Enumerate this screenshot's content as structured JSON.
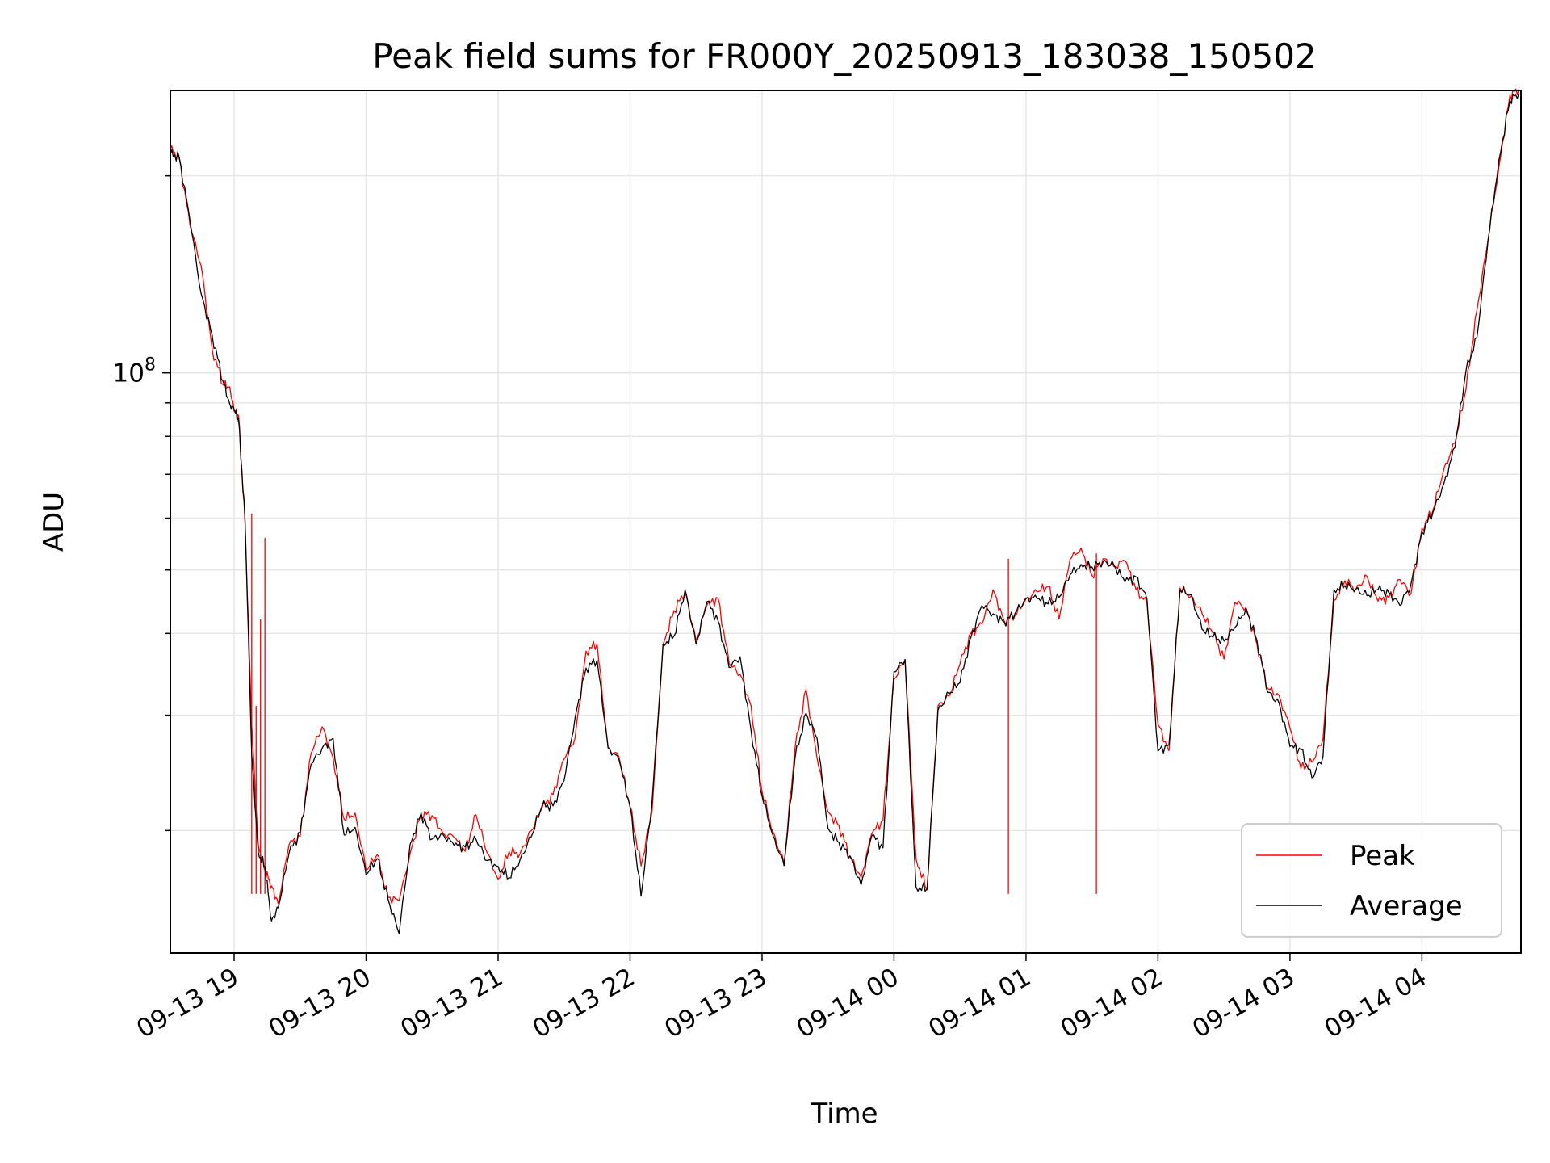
{
  "chart_data": {
    "type": "line",
    "title": "Peak field sums for FR000Y_20250913_183038_150502",
    "xlabel": "Time",
    "ylabel": "ADU",
    "y_scale": "log",
    "ylim": [
      13000000,
      270000000
    ],
    "xlim": [
      "2025-09-13 18:31",
      "2025-09-14 04:45"
    ],
    "x_ticks": [
      "09-13 19",
      "09-13 20",
      "09-13 21",
      "09-13 22",
      "09-13 23",
      "09-14 00",
      "09-14 01",
      "09-14 02",
      "09-14 03",
      "09-14 04"
    ],
    "y_tick_labels": [
      {
        "value": 100000000,
        "base": "10",
        "exponent": "8"
      }
    ],
    "grid": true,
    "legend": {
      "position": "lower right",
      "entries": [
        "Peak",
        "Average"
      ]
    },
    "colors": {
      "Peak": "#ff0000",
      "Average": "#000000"
    },
    "series": [
      {
        "name": "Peak",
        "x": [
          "2025-09-13 18:31",
          "2025-09-13 18:35",
          "2025-09-13 18:40",
          "2025-09-13 18:45",
          "2025-09-13 18:50",
          "2025-09-13 18:55",
          "2025-09-13 18:58",
          "2025-09-13 19:00",
          "2025-09-13 19:02",
          "2025-09-13 19:05",
          "2025-09-13 19:08",
          "2025-09-13 19:11",
          "2025-09-13 19:14",
          "2025-09-13 19:17",
          "2025-09-13 19:20",
          "2025-09-13 19:25",
          "2025-09-13 19:30",
          "2025-09-13 19:35",
          "2025-09-13 19:40",
          "2025-09-13 19:45",
          "2025-09-13 19:50",
          "2025-09-13 19:55",
          "2025-09-13 20:00",
          "2025-09-13 20:05",
          "2025-09-13 20:10",
          "2025-09-13 20:15",
          "2025-09-13 20:20",
          "2025-09-13 20:25",
          "2025-09-13 20:30",
          "2025-09-13 20:35",
          "2025-09-13 20:40",
          "2025-09-13 20:45",
          "2025-09-13 20:50",
          "2025-09-13 20:55",
          "2025-09-13 21:00",
          "2025-09-13 21:05",
          "2025-09-13 21:10",
          "2025-09-13 21:15",
          "2025-09-13 21:20",
          "2025-09-13 21:25",
          "2025-09-13 21:30",
          "2025-09-13 21:35",
          "2025-09-13 21:40",
          "2025-09-13 21:45",
          "2025-09-13 21:50",
          "2025-09-13 21:55",
          "2025-09-13 22:00",
          "2025-09-13 22:05",
          "2025-09-13 22:10",
          "2025-09-13 22:15",
          "2025-09-13 22:20",
          "2025-09-13 22:25",
          "2025-09-13 22:30",
          "2025-09-13 22:35",
          "2025-09-13 22:40",
          "2025-09-13 22:45",
          "2025-09-13 22:50",
          "2025-09-13 22:55",
          "2025-09-13 23:00",
          "2025-09-13 23:05",
          "2025-09-13 23:10",
          "2025-09-13 23:15",
          "2025-09-13 23:20",
          "2025-09-13 23:25",
          "2025-09-13 23:30",
          "2025-09-13 23:35",
          "2025-09-13 23:40",
          "2025-09-13 23:45",
          "2025-09-13 23:50",
          "2025-09-13 23:55",
          "2025-09-14 00:00",
          "2025-09-14 00:05",
          "2025-09-14 00:10",
          "2025-09-14 00:15",
          "2025-09-14 00:20",
          "2025-09-14 00:25",
          "2025-09-14 00:30",
          "2025-09-14 00:35",
          "2025-09-14 00:40",
          "2025-09-14 00:45",
          "2025-09-14 00:50",
          "2025-09-14 00:55",
          "2025-09-14 01:00",
          "2025-09-14 01:05",
          "2025-09-14 01:10",
          "2025-09-14 01:15",
          "2025-09-14 01:20",
          "2025-09-14 01:25",
          "2025-09-14 01:30",
          "2025-09-14 01:35",
          "2025-09-14 01:40",
          "2025-09-14 01:45",
          "2025-09-14 01:50",
          "2025-09-14 01:55",
          "2025-09-14 02:00",
          "2025-09-14 02:05",
          "2025-09-14 02:10",
          "2025-09-14 02:15",
          "2025-09-14 02:20",
          "2025-09-14 02:25",
          "2025-09-14 02:30",
          "2025-09-14 02:35",
          "2025-09-14 02:40",
          "2025-09-14 02:45",
          "2025-09-14 02:50",
          "2025-09-14 02:55",
          "2025-09-14 03:00",
          "2025-09-14 03:05",
          "2025-09-14 03:10",
          "2025-09-14 03:15",
          "2025-09-14 03:20",
          "2025-09-14 03:25",
          "2025-09-14 03:30",
          "2025-09-14 03:35",
          "2025-09-14 03:40",
          "2025-09-14 03:45",
          "2025-09-14 03:50",
          "2025-09-14 03:55",
          "2025-09-14 04:00",
          "2025-09-14 04:05",
          "2025-09-14 04:10",
          "2025-09-14 04:15",
          "2025-09-14 04:20",
          "2025-09-14 04:25",
          "2025-09-14 04:30",
          "2025-09-14 04:35",
          "2025-09-14 04:40",
          "2025-09-14 04:44"
        ],
        "values": [
          220000000,
          215000000,
          170000000,
          140000000,
          112000000,
          97000000,
          93000000,
          88000000,
          86000000,
          60000000,
          28000000,
          19000000,
          18000000,
          16000000,
          15500000,
          19000000,
          20000000,
          26000000,
          28000000,
          27000000,
          20500000,
          21000000,
          17500000,
          18500000,
          16000000,
          15000000,
          19000000,
          21500000,
          20500000,
          20000000,
          19500000,
          19000000,
          20500000,
          18500000,
          17500000,
          18000000,
          18500000,
          20000000,
          22000000,
          22500000,
          25000000,
          29000000,
          37000000,
          38000000,
          27000000,
          26000000,
          22000000,
          17000000,
          22000000,
          39000000,
          42000000,
          47000000,
          39000000,
          45000000,
          44000000,
          36000000,
          36000000,
          30000000,
          23000000,
          20000000,
          18000000,
          26500000,
          32000000,
          27000000,
          21000000,
          20000000,
          18500000,
          17000000,
          20000000,
          20000000,
          35000000,
          37000000,
          17500000,
          16500000,
          31000000,
          32500000,
          35000000,
          40000000,
          43000000,
          45000000,
          42000000,
          43000000,
          45500000,
          46000000,
          46000000,
          44000000,
          51000000,
          53000000,
          50000000,
          52000000,
          51000000,
          50000000,
          48000000,
          45000000,
          28000000,
          27000000,
          47000000,
          46000000,
          42000000,
          40000000,
          38000000,
          43000000,
          44000000,
          39000000,
          33000000,
          32000000,
          28000000,
          26000000,
          25000000,
          27000000,
          46000000,
          48000000,
          47000000,
          47500000,
          46000000,
          46000000,
          46500000,
          47000000,
          58000000,
          62000000,
          70000000,
          78000000,
          98000000,
          120000000,
          160000000,
          210000000,
          265000000,
          270000000
        ],
        "spikes": [
          {
            "x": "2025-09-13 19:08",
            "value": 61000000
          },
          {
            "x": "2025-09-13 19:10",
            "value": 31000000
          },
          {
            "x": "2025-09-13 19:12",
            "value": 42000000
          },
          {
            "x": "2025-09-13 19:14",
            "value": 56000000
          },
          {
            "x": "2025-09-14 00:52",
            "value": 52000000
          },
          {
            "x": "2025-09-14 01:32",
            "value": 53000000
          }
        ]
      },
      {
        "name": "Average",
        "x": [
          "2025-09-13 18:31",
          "2025-09-13 18:35",
          "2025-09-13 18:40",
          "2025-09-13 18:45",
          "2025-09-13 18:50",
          "2025-09-13 18:55",
          "2025-09-13 18:58",
          "2025-09-13 19:00",
          "2025-09-13 19:02",
          "2025-09-13 19:05",
          "2025-09-13 19:08",
          "2025-09-13 19:11",
          "2025-09-13 19:14",
          "2025-09-13 19:17",
          "2025-09-13 19:20",
          "2025-09-13 19:25",
          "2025-09-13 19:30",
          "2025-09-13 19:35",
          "2025-09-13 19:40",
          "2025-09-13 19:45",
          "2025-09-13 19:50",
          "2025-09-13 19:55",
          "2025-09-13 20:00",
          "2025-09-13 20:05",
          "2025-09-13 20:10",
          "2025-09-13 20:15",
          "2025-09-13 20:20",
          "2025-09-13 20:25",
          "2025-09-13 20:30",
          "2025-09-13 20:35",
          "2025-09-13 20:40",
          "2025-09-13 20:45",
          "2025-09-13 20:50",
          "2025-09-13 20:55",
          "2025-09-13 21:00",
          "2025-09-13 21:05",
          "2025-09-13 21:10",
          "2025-09-13 21:15",
          "2025-09-13 21:20",
          "2025-09-13 21:25",
          "2025-09-13 21:30",
          "2025-09-13 21:35",
          "2025-09-13 21:40",
          "2025-09-13 21:45",
          "2025-09-13 21:50",
          "2025-09-13 21:55",
          "2025-09-13 22:00",
          "2025-09-13 22:05",
          "2025-09-13 22:10",
          "2025-09-13 22:15",
          "2025-09-13 22:20",
          "2025-09-13 22:25",
          "2025-09-13 22:30",
          "2025-09-13 22:35",
          "2025-09-13 22:40",
          "2025-09-13 22:45",
          "2025-09-13 22:50",
          "2025-09-13 22:55",
          "2025-09-13 23:00",
          "2025-09-13 23:05",
          "2025-09-13 23:10",
          "2025-09-13 23:15",
          "2025-09-13 23:20",
          "2025-09-13 23:25",
          "2025-09-13 23:30",
          "2025-09-13 23:35",
          "2025-09-13 23:40",
          "2025-09-13 23:45",
          "2025-09-13 23:50",
          "2025-09-13 23:55",
          "2025-09-14 00:00",
          "2025-09-14 00:05",
          "2025-09-14 00:10",
          "2025-09-14 00:15",
          "2025-09-14 00:20",
          "2025-09-14 00:25",
          "2025-09-14 00:30",
          "2025-09-14 00:35",
          "2025-09-14 00:40",
          "2025-09-14 00:45",
          "2025-09-14 00:50",
          "2025-09-14 00:55",
          "2025-09-14 01:00",
          "2025-09-14 01:05",
          "2025-09-14 01:10",
          "2025-09-14 01:15",
          "2025-09-14 01:20",
          "2025-09-14 01:25",
          "2025-09-14 01:30",
          "2025-09-14 01:35",
          "2025-09-14 01:40",
          "2025-09-14 01:45",
          "2025-09-14 01:50",
          "2025-09-14 01:55",
          "2025-09-14 02:00",
          "2025-09-14 02:05",
          "2025-09-14 02:10",
          "2025-09-14 02:15",
          "2025-09-14 02:20",
          "2025-09-14 02:25",
          "2025-09-14 02:30",
          "2025-09-14 02:35",
          "2025-09-14 02:40",
          "2025-09-14 02:45",
          "2025-09-14 02:50",
          "2025-09-14 02:55",
          "2025-09-14 03:00",
          "2025-09-14 03:05",
          "2025-09-14 03:10",
          "2025-09-14 03:15",
          "2025-09-14 03:20",
          "2025-09-14 03:25",
          "2025-09-14 03:30",
          "2025-09-14 03:35",
          "2025-09-14 03:40",
          "2025-09-14 03:45",
          "2025-09-14 03:50",
          "2025-09-14 03:55",
          "2025-09-14 04:00",
          "2025-09-14 04:05",
          "2025-09-14 04:10",
          "2025-09-14 04:15",
          "2025-09-14 04:20",
          "2025-09-14 04:25",
          "2025-09-14 04:30",
          "2025-09-14 04:35",
          "2025-09-14 04:40",
          "2025-09-14 04:44"
        ],
        "values": [
          215000000,
          212000000,
          168000000,
          138000000,
          111000000,
          96000000,
          92000000,
          87000000,
          85000000,
          58000000,
          27000000,
          18500000,
          17000000,
          15000000,
          15200000,
          18500000,
          19500000,
          25500000,
          27500000,
          26500000,
          20000000,
          20500000,
          17000000,
          18000000,
          15500000,
          14500000,
          18500000,
          21000000,
          20000000,
          19500000,
          19000000,
          18500000,
          20000000,
          18000000,
          17000000,
          17500000,
          18000000,
          19500000,
          21500000,
          22000000,
          24500000,
          28500000,
          36000000,
          37000000,
          26500000,
          25500000,
          21500000,
          16500000,
          21500000,
          38000000,
          41000000,
          46000000,
          38500000,
          44000000,
          43000000,
          35500000,
          35500000,
          29500000,
          22500000,
          19500000,
          17500000,
          26000000,
          31000000,
          26500000,
          20500000,
          19500000,
          18000000,
          16500000,
          19500000,
          19500000,
          34000000,
          36000000,
          17000000,
          16000000,
          30500000,
          32000000,
          34500000,
          39500000,
          42500000,
          44500000,
          41500000,
          42500000,
          45000000,
          45500000,
          45500000,
          43500000,
          50000000,
          52000000,
          49500000,
          51500000,
          50500000,
          49500000,
          47500000,
          44500000,
          27500000,
          26500000,
          46500000,
          45500000,
          41500000,
          39500000,
          37500000,
          42500000,
          43500000,
          38500000,
          32500000,
          31500000,
          27500000,
          25500000,
          24500000,
          26500000,
          45500000,
          47500000,
          46500000,
          47000000,
          45500000,
          45500000,
          46000000,
          46500000,
          57000000,
          61000000,
          69000000,
          77000000,
          97000000,
          118000000,
          158000000,
          208000000,
          262000000,
          268000000
        ]
      }
    ]
  }
}
